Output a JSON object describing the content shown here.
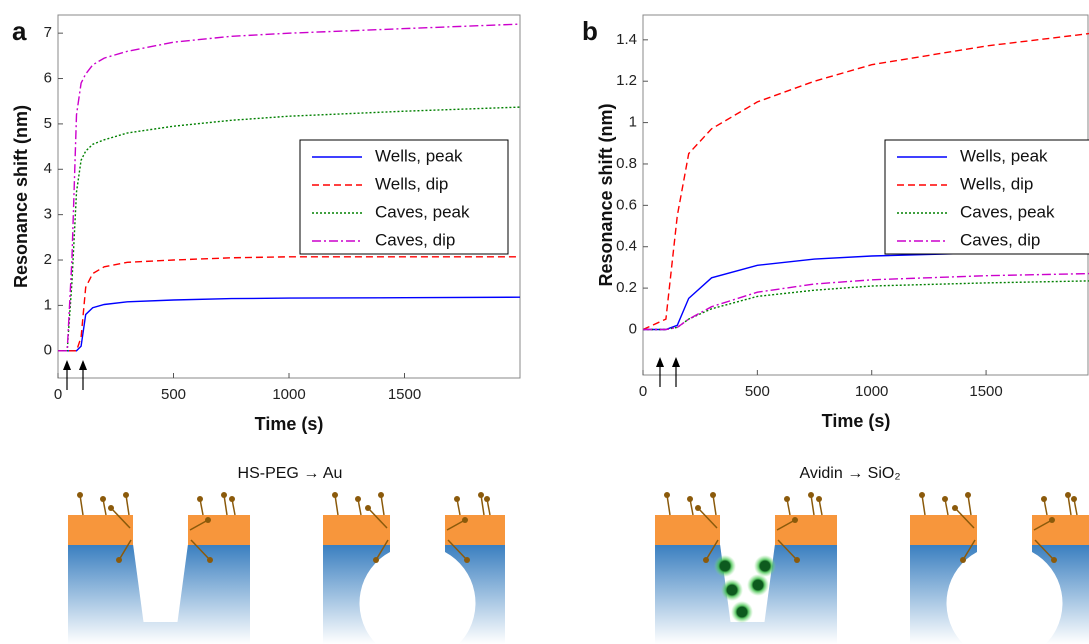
{
  "chart_data": [
    {
      "type": "line",
      "panel_label": "a",
      "xlabel": "Time (s)",
      "ylabel": "Resonance shift (nm)",
      "x": [
        0,
        40,
        60,
        80,
        100,
        120,
        150,
        200,
        300,
        500,
        750,
        1000,
        1500,
        2000
      ],
      "series": [
        {
          "name": "Wells, peak",
          "color": "#0000ff",
          "style": "solid",
          "values": [
            0,
            0,
            0,
            0,
            0.1,
            0.8,
            0.95,
            1.02,
            1.08,
            1.12,
            1.15,
            1.16,
            1.17,
            1.18
          ]
        },
        {
          "name": "Wells, dip",
          "color": "#ff0000",
          "style": "dashed",
          "values": [
            0,
            0,
            0,
            0,
            0.3,
            1.4,
            1.7,
            1.85,
            1.95,
            2.0,
            2.05,
            2.07,
            2.07,
            2.07
          ]
        },
        {
          "name": "Caves, peak",
          "color": "#008000",
          "style": "dotted",
          "values": [
            0,
            0,
            1.5,
            3.5,
            4.2,
            4.4,
            4.55,
            4.65,
            4.8,
            4.95,
            5.08,
            5.17,
            5.28,
            5.37
          ]
        },
        {
          "name": "Caves, dip",
          "color": "#cc00cc",
          "style": "dashdot",
          "values": [
            0,
            0,
            2,
            5.2,
            5.9,
            6.1,
            6.3,
            6.45,
            6.6,
            6.8,
            6.93,
            7.0,
            7.1,
            7.2
          ]
        }
      ],
      "xlim": [
        0,
        2000
      ],
      "ylim": [
        -0.6,
        7.4
      ],
      "xticks": [
        0,
        500,
        1000,
        1500
      ],
      "yticks": [
        0,
        1,
        2,
        3,
        4,
        5,
        6,
        7
      ],
      "legend": "center right",
      "diagram_label": "HS-PEG → Au"
    },
    {
      "type": "line",
      "panel_label": "b",
      "xlabel": "Time (s)",
      "ylabel": "Resonance shift (nm)",
      "x": [
        0,
        100,
        150,
        200,
        300,
        500,
        750,
        1000,
        1500,
        1950
      ],
      "series": [
        {
          "name": "Wells, peak",
          "color": "#0000ff",
          "style": "solid",
          "values": [
            0,
            0,
            0.02,
            0.15,
            0.25,
            0.31,
            0.34,
            0.355,
            0.37,
            0.38
          ]
        },
        {
          "name": "Wells, dip",
          "color": "#ff0000",
          "style": "dashed",
          "values": [
            0,
            0.05,
            0.55,
            0.85,
            0.97,
            1.1,
            1.2,
            1.28,
            1.37,
            1.43
          ]
        },
        {
          "name": "Caves, peak",
          "color": "#008000",
          "style": "dotted",
          "values": [
            0,
            0,
            0.01,
            0.05,
            0.1,
            0.16,
            0.19,
            0.21,
            0.225,
            0.235
          ]
        },
        {
          "name": "Caves, dip",
          "color": "#cc00cc",
          "style": "dashdot",
          "values": [
            0,
            0,
            0.01,
            0.05,
            0.11,
            0.18,
            0.22,
            0.24,
            0.26,
            0.27
          ]
        }
      ],
      "xlim": [
        0,
        1950
      ],
      "ylim": [
        -0.22,
        1.52
      ],
      "xticks": [
        0,
        500,
        1000,
        1500
      ],
      "yticks": [
        0,
        0.2,
        0.4,
        0.6,
        0.8,
        1,
        1.2,
        1.4
      ],
      "legend": "center right",
      "diagram_label": "Avidin → SiO₂"
    }
  ]
}
